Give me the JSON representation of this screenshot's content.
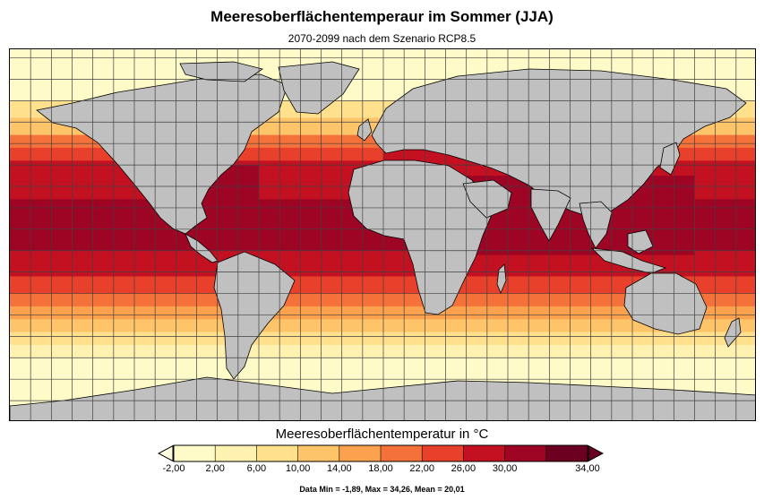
{
  "header": {
    "title": "Meeresoberflächentemperaur im Sommer (JJA)",
    "subtitle": "2070-2099 nach dem Szenario RCP8.5"
  },
  "legend": {
    "title": "Meeresoberflächentemperatur in °C",
    "ticks": [
      "-2,00",
      "2,00",
      "6,00",
      "10,00",
      "14,00",
      "18,00",
      "22,00",
      "26,00",
      "30,00",
      "34,00"
    ],
    "stats": "Data Min = -1,89, Max = 34,26, Mean = 20,01"
  },
  "colors": {
    "land": "#c0c0c0",
    "grid": "#404040",
    "below_min": "#fffde0",
    "above_max": "#6b0021",
    "bins": [
      "#fffbc8",
      "#fff2b0",
      "#ffe08c",
      "#fdc46a",
      "#fca24f",
      "#f5713a",
      "#e8402a",
      "#c31122",
      "#9e0424",
      "#6b0021"
    ]
  },
  "chart_data": {
    "type": "heatmap",
    "title": "Meeresoberflächentemperaur im Sommer (JJA)",
    "subtitle": "2070-2099 nach dem Szenario RCP8.5",
    "colorbar_label": "Meeresoberflächentemperatur in °C",
    "colorbar_range": [
      -2,
      34
    ],
    "colorbar_step": 4,
    "data_min": -1.89,
    "data_max": 34.26,
    "data_mean": 20.01,
    "projection": "equirectangular",
    "grid": true,
    "zonal_bands": [
      {
        "lat": [
          84,
          60
        ],
        "value": -1.0
      },
      {
        "lat": [
          60,
          52
        ],
        "value": 7.0
      },
      {
        "lat": [
          52,
          44
        ],
        "value": 12.0
      },
      {
        "lat": [
          44,
          38
        ],
        "value": 19.0
      },
      {
        "lat": [
          38,
          32
        ],
        "value": 23.0
      },
      {
        "lat": [
          32,
          22
        ],
        "value": 27.0
      },
      {
        "lat": [
          22,
          14
        ],
        "value": 29.0
      },
      {
        "lat": [
          14,
          -10
        ],
        "value": 31.0
      },
      {
        "lat": [
          -10,
          -22
        ],
        "value": 27.5
      },
      {
        "lat": [
          -22,
          -30
        ],
        "value": 24.0
      },
      {
        "lat": [
          -30,
          -36
        ],
        "value": 20.0
      },
      {
        "lat": [
          -36,
          -42
        ],
        "value": 16.0
      },
      {
        "lat": [
          -42,
          -48
        ],
        "value": 11.5
      },
      {
        "lat": [
          -48,
          -54
        ],
        "value": 8.0
      },
      {
        "lat": [
          -54,
          -60
        ],
        "value": 4.0
      },
      {
        "lat": [
          -60,
          -90
        ],
        "value": -1.5
      }
    ],
    "regional_anomalies": [
      {
        "lon": [
          -95,
          -60
        ],
        "lat": [
          30,
          10
        ],
        "value": 31.0
      },
      {
        "lon": [
          40,
          150
        ],
        "lat": [
          25,
          -12
        ],
        "value": 31.0
      },
      {
        "lon": [
          0,
          40
        ],
        "lat": [
          46,
          30
        ],
        "value": 27.0
      },
      {
        "lon": [
          -170,
          -110
        ],
        "lat": [
          10,
          -8
        ],
        "value": 31.0
      }
    ]
  }
}
